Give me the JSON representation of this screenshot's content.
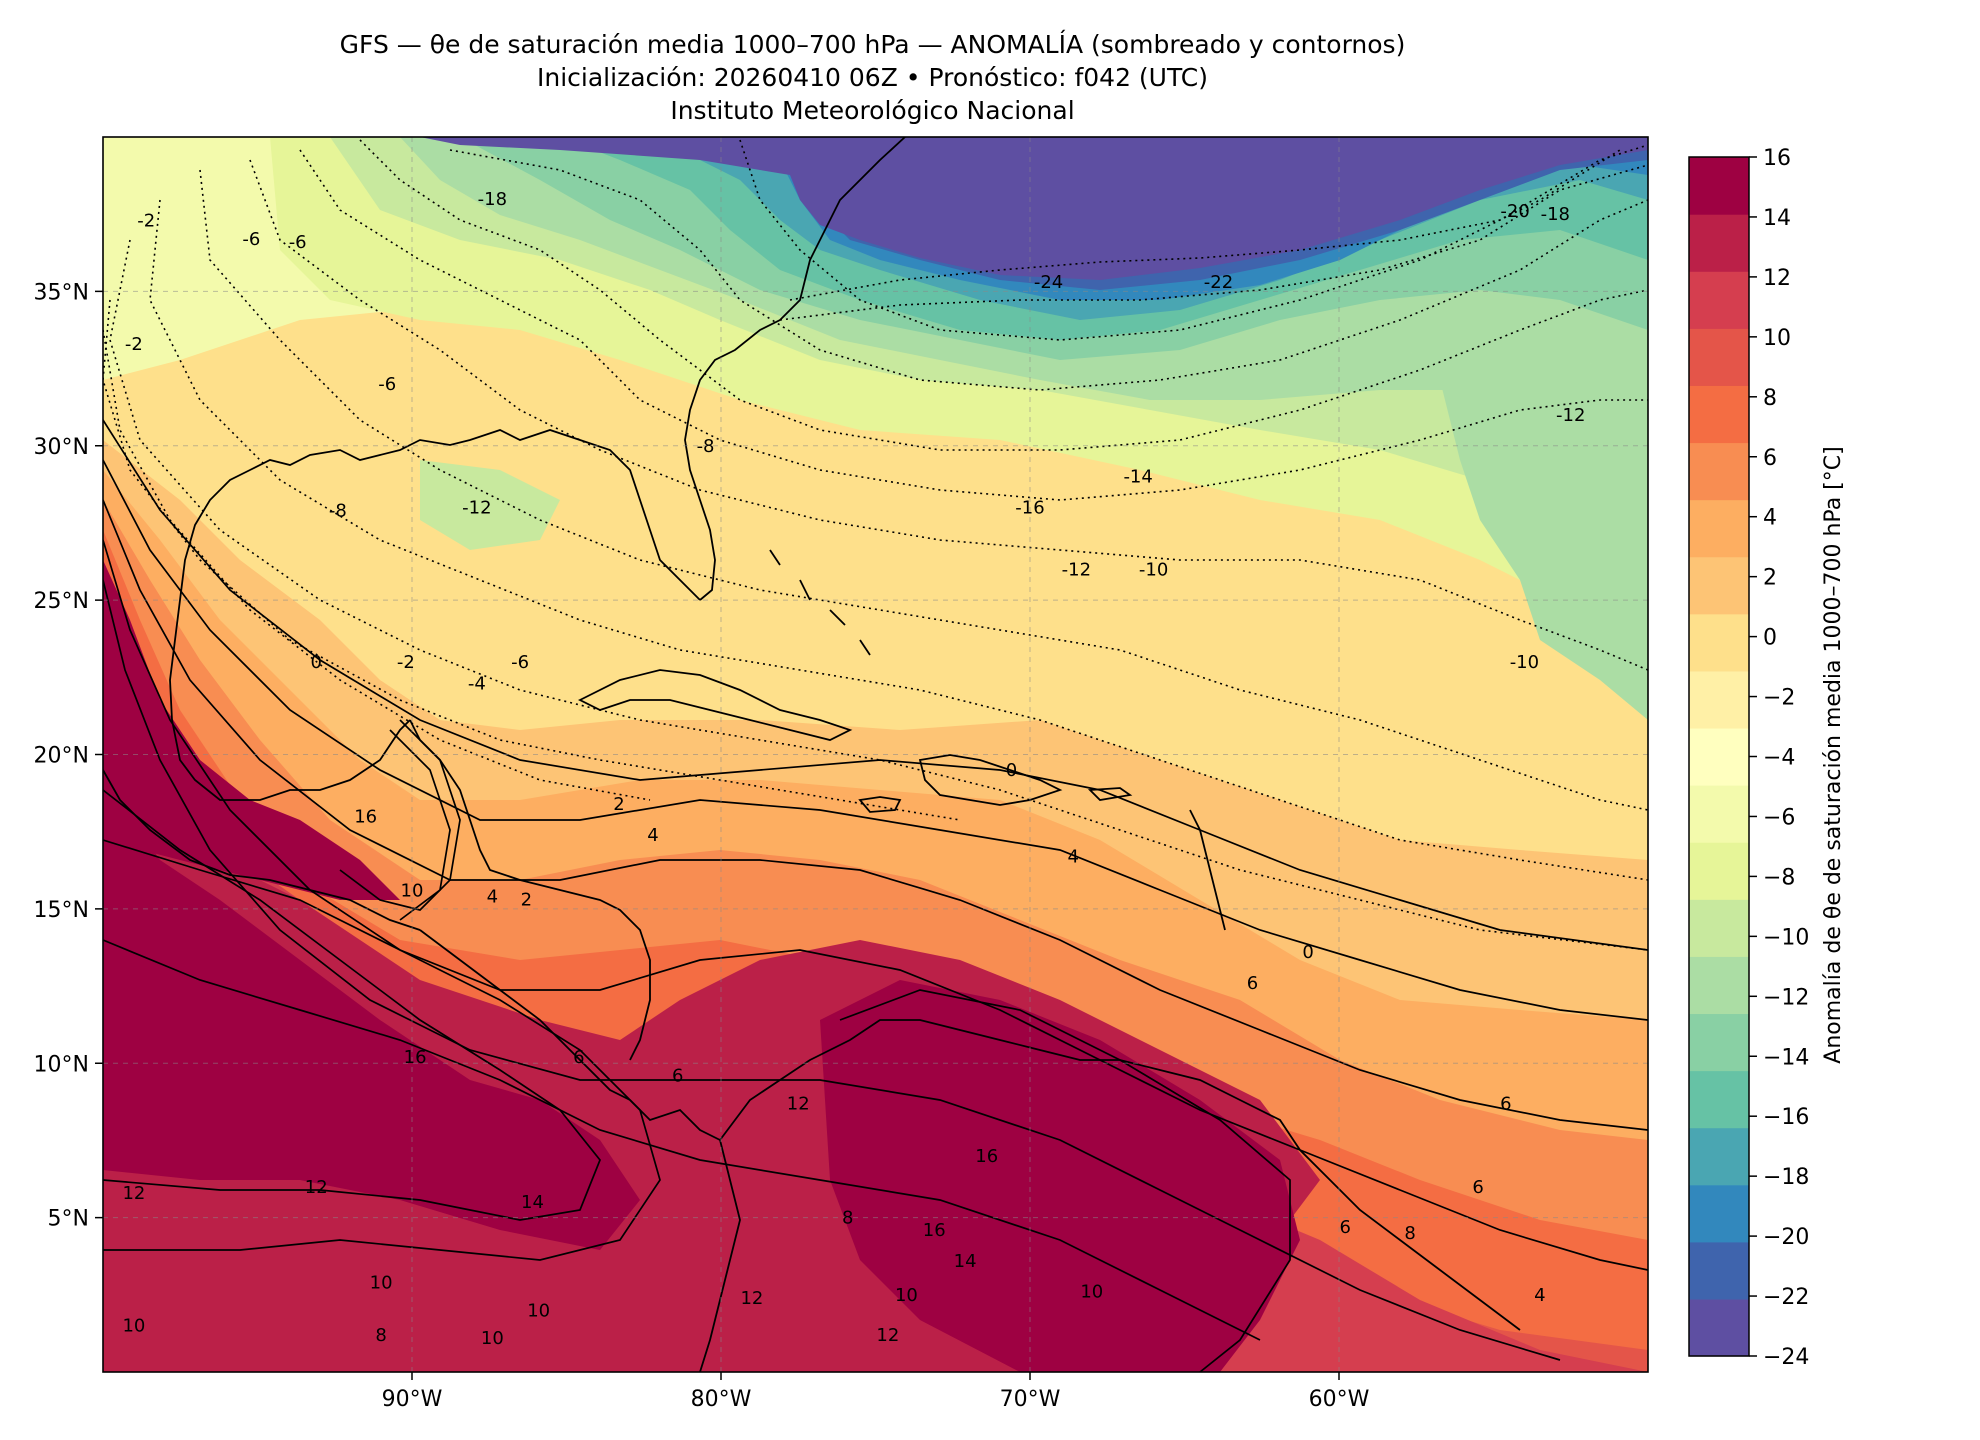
{
  "title": {
    "line1": "GFS — θe de saturación media 1000–700 hPa — ANOMALÍA (sombreado y contornos)",
    "line2": "Inicialización: 20260410 06Z   •   Pronóstico: f042 (UTC)",
    "line3": "Instituto Meteorológico Nacional"
  },
  "map": {
    "extent": {
      "lon": [
        -100,
        -50
      ],
      "lat": [
        0,
        40
      ]
    },
    "lat_ticks": [
      {
        "value": 35,
        "label": "35°N"
      },
      {
        "value": 30,
        "label": "30°N"
      },
      {
        "value": 25,
        "label": "25°N"
      },
      {
        "value": 20,
        "label": "20°N"
      },
      {
        "value": 15,
        "label": "15°N"
      },
      {
        "value": 10,
        "label": "10°N"
      },
      {
        "value": 5,
        "label": "5°N"
      }
    ],
    "lon_ticks": [
      {
        "value": -90,
        "label": "90°W"
      },
      {
        "value": -80,
        "label": "80°W"
      },
      {
        "value": -70,
        "label": "70°W"
      },
      {
        "value": -60,
        "label": "60°W"
      }
    ],
    "gridlines": true,
    "contour_labels": [
      {
        "text": "-18",
        "lon": -87.4,
        "lat": 38.0
      },
      {
        "text": "-24",
        "lon": -69.4,
        "lat": 35.3
      },
      {
        "text": "-22",
        "lon": -63.9,
        "lat": 35.3
      },
      {
        "text": "-20",
        "lon": -54.3,
        "lat": 37.6
      },
      {
        "text": "-18",
        "lon": -53.0,
        "lat": 37.5
      },
      {
        "text": "-6",
        "lon": -95.2,
        "lat": 36.7
      },
      {
        "text": "-6",
        "lon": -93.7,
        "lat": 36.6
      },
      {
        "text": "-2",
        "lon": -98.6,
        "lat": 37.3
      },
      {
        "text": "-2",
        "lon": -99.0,
        "lat": 33.3
      },
      {
        "text": "-6",
        "lon": -90.8,
        "lat": 32.0
      },
      {
        "text": "-8",
        "lon": -80.5,
        "lat": 30.0
      },
      {
        "text": "-12",
        "lon": -87.9,
        "lat": 28.0
      },
      {
        "text": "-8",
        "lon": -92.4,
        "lat": 27.9
      },
      {
        "text": "-16",
        "lon": -70.0,
        "lat": 28.0
      },
      {
        "text": "-14",
        "lon": -66.5,
        "lat": 29.0
      },
      {
        "text": "-12",
        "lon": -52.5,
        "lat": 31.0
      },
      {
        "text": "-12",
        "lon": -68.5,
        "lat": 26.0
      },
      {
        "text": "-10",
        "lon": -66.0,
        "lat": 26.0
      },
      {
        "text": "-10",
        "lon": -54.0,
        "lat": 23.0
      },
      {
        "text": "0",
        "lon": -93.1,
        "lat": 23.0
      },
      {
        "text": "-2",
        "lon": -90.2,
        "lat": 23.0
      },
      {
        "text": "-6",
        "lon": -86.5,
        "lat": 23.0
      },
      {
        "text": "-4",
        "lon": -87.9,
        "lat": 22.3
      },
      {
        "text": "2",
        "lon": -83.3,
        "lat": 18.4
      },
      {
        "text": "4",
        "lon": -82.2,
        "lat": 17.4
      },
      {
        "text": "0",
        "lon": -70.6,
        "lat": 19.5
      },
      {
        "text": "4",
        "lon": -68.6,
        "lat": 16.7
      },
      {
        "text": "16",
        "lon": -91.5,
        "lat": 18.0
      },
      {
        "text": "10",
        "lon": -90.0,
        "lat": 15.6
      },
      {
        "text": "4",
        "lon": -87.4,
        "lat": 15.4
      },
      {
        "text": "2",
        "lon": -86.3,
        "lat": 15.3
      },
      {
        "text": "0",
        "lon": -61.0,
        "lat": 13.6
      },
      {
        "text": "6",
        "lon": -62.8,
        "lat": 12.6
      },
      {
        "text": "16",
        "lon": -89.9,
        "lat": 10.2
      },
      {
        "text": "6",
        "lon": -84.6,
        "lat": 10.2
      },
      {
        "text": "6",
        "lon": -81.4,
        "lat": 9.6
      },
      {
        "text": "6",
        "lon": -54.6,
        "lat": 8.7
      },
      {
        "text": "12",
        "lon": -77.5,
        "lat": 8.7
      },
      {
        "text": "16",
        "lon": -71.4,
        "lat": 7.0
      },
      {
        "text": "12",
        "lon": -93.1,
        "lat": 6.0
      },
      {
        "text": "12",
        "lon": -99.0,
        "lat": 5.8
      },
      {
        "text": "14",
        "lon": -86.1,
        "lat": 5.5
      },
      {
        "text": "6",
        "lon": -55.5,
        "lat": 6.0
      },
      {
        "text": "6",
        "lon": -59.8,
        "lat": 4.7
      },
      {
        "text": "8",
        "lon": -57.7,
        "lat": 4.5
      },
      {
        "text": "16",
        "lon": -73.1,
        "lat": 4.6
      },
      {
        "text": "14",
        "lon": -72.1,
        "lat": 3.6
      },
      {
        "text": "8",
        "lon": -75.9,
        "lat": 5.0
      },
      {
        "text": "10",
        "lon": -91.0,
        "lat": 2.9
      },
      {
        "text": "10",
        "lon": -85.9,
        "lat": 2.0
      },
      {
        "text": "10",
        "lon": -74.0,
        "lat": 2.5
      },
      {
        "text": "10",
        "lon": -68.0,
        "lat": 2.6
      },
      {
        "text": "12",
        "lon": -79.0,
        "lat": 2.4
      },
      {
        "text": "12",
        "lon": -74.6,
        "lat": 1.2
      },
      {
        "text": "8",
        "lon": -91.0,
        "lat": 1.2
      },
      {
        "text": "10",
        "lon": -87.4,
        "lat": 1.1
      },
      {
        "text": "10",
        "lon": -99.0,
        "lat": 1.5
      },
      {
        "text": "4",
        "lon": -53.5,
        "lat": 2.5
      }
    ]
  },
  "colorbar": {
    "label": "Anomalía de θe de saturación media 1000–700 hPa [°C]",
    "ticks": [
      {
        "value": 16,
        "label": "16"
      },
      {
        "value": 14,
        "label": "14"
      },
      {
        "value": 12,
        "label": "12"
      },
      {
        "value": 10,
        "label": "10"
      },
      {
        "value": 8,
        "label": "8"
      },
      {
        "value": 6,
        "label": "6"
      },
      {
        "value": 4,
        "label": "4"
      },
      {
        "value": 2,
        "label": "2"
      },
      {
        "value": 0,
        "label": "0"
      },
      {
        "value": -2,
        "label": "−2"
      },
      {
        "value": -4,
        "label": "−4"
      },
      {
        "value": -6,
        "label": "−6"
      },
      {
        "value": -8,
        "label": "−8"
      },
      {
        "value": -10,
        "label": "−10"
      },
      {
        "value": -12,
        "label": "−12"
      },
      {
        "value": -14,
        "label": "−14"
      },
      {
        "value": -16,
        "label": "−16"
      },
      {
        "value": -18,
        "label": "−18"
      },
      {
        "value": -20,
        "label": "−20"
      },
      {
        "value": -22,
        "label": "−22"
      },
      {
        "value": -24,
        "label": "−24"
      }
    ],
    "colors": [
      "#5e4fa2",
      "#3f64ad",
      "#3288bd",
      "#4aa6b2",
      "#66c2a5",
      "#89d0a4",
      "#abdda4",
      "#c8e99e",
      "#e6f598",
      "#f3faac",
      "#ffffbf",
      "#fff0a6",
      "#fee08b",
      "#fdc475",
      "#fdae61",
      "#f88d52",
      "#f46d43",
      "#e45549",
      "#d53e4f",
      "#bb2048",
      "#9e0142"
    ]
  }
}
